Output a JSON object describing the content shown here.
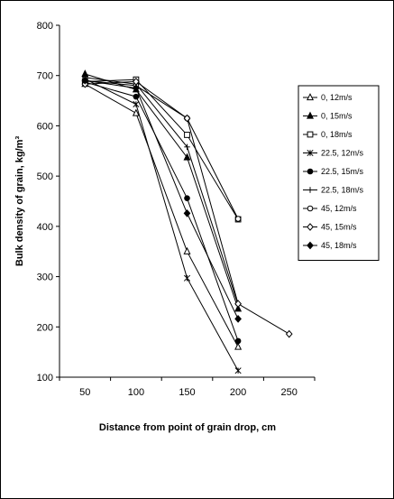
{
  "chart_data": {
    "type": "line",
    "xlabel": "Distance from point of grain drop, cm",
    "ylabel": "Bulk density of grain, kg/m³",
    "xlim": [
      25,
      275
    ],
    "ylim": [
      100,
      800
    ],
    "xticks": [
      50,
      100,
      150,
      200,
      250
    ],
    "yticks": [
      100,
      200,
      300,
      400,
      500,
      600,
      700,
      800
    ],
    "grid": false,
    "legend": "right",
    "line_color": "#000000",
    "series": [
      {
        "name": "0, 12m/s",
        "marker": "triangle-open",
        "x": [
          50,
          100,
          150,
          200
        ],
        "y": [
          683,
          625,
          350,
          160
        ]
      },
      {
        "name": "0, 15m/s",
        "marker": "triangle-filled",
        "x": [
          50,
          100,
          150,
          200
        ],
        "y": [
          703,
          672,
          537,
          236
        ]
      },
      {
        "name": "0, 18m/s",
        "marker": "square-open",
        "x": [
          50,
          100,
          150,
          200
        ],
        "y": [
          688,
          692,
          582,
          414
        ]
      },
      {
        "name": "22.5, 12m/s",
        "marker": "asterisk",
        "x": [
          50,
          100,
          150,
          200
        ],
        "y": [
          693,
          643,
          297,
          113
        ]
      },
      {
        "name": "22.5, 15m/s",
        "marker": "circle-filled",
        "x": [
          50,
          100,
          150,
          200
        ],
        "y": [
          687,
          658,
          456,
          172
        ]
      },
      {
        "name": "22.5, 18m/s",
        "marker": "plus",
        "x": [
          50,
          100,
          150,
          200
        ],
        "y": [
          696,
          683,
          558,
          244
        ]
      },
      {
        "name": "45, 12m/s",
        "marker": "circle-open",
        "x": [
          50,
          100,
          150,
          200
        ],
        "y": [
          690,
          680,
          615,
          415
        ]
      },
      {
        "name": "45, 15m/s",
        "marker": "diamond-open",
        "x": [
          50,
          100,
          150,
          200,
          250
        ],
        "y": [
          683,
          688,
          615,
          246,
          186
        ]
      },
      {
        "name": "45, 18m/s",
        "marker": "diamond-filled",
        "x": [
          50,
          100,
          150,
          200
        ],
        "y": [
          690,
          675,
          426,
          216
        ]
      }
    ]
  }
}
